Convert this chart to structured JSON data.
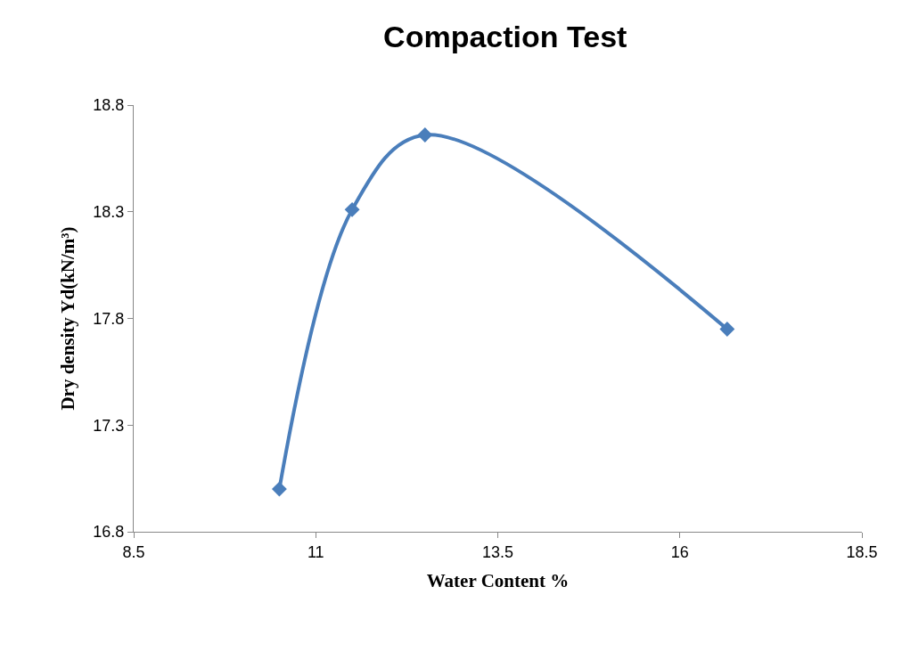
{
  "chart_data": {
    "type": "line",
    "title": "Compaction Test",
    "xlabel": "Water Content %",
    "ylabel": "Dry density Yd(kN/m³)",
    "x": [
      10.5,
      11.5,
      12.5,
      16.65
    ],
    "series": [
      {
        "color": "#4a7ebb",
        "values": [
          17.0,
          18.31,
          18.66,
          17.75
        ]
      }
    ],
    "xlim": [
      8.5,
      18.5
    ],
    "xticks": [
      8.5,
      11,
      13.5,
      16,
      18.5
    ],
    "ylim": [
      16.8,
      18.8
    ],
    "yticks": [
      16.8,
      17.3,
      17.8,
      18.3,
      18.8
    ],
    "marker": "diamond",
    "line_style": "solid"
  }
}
